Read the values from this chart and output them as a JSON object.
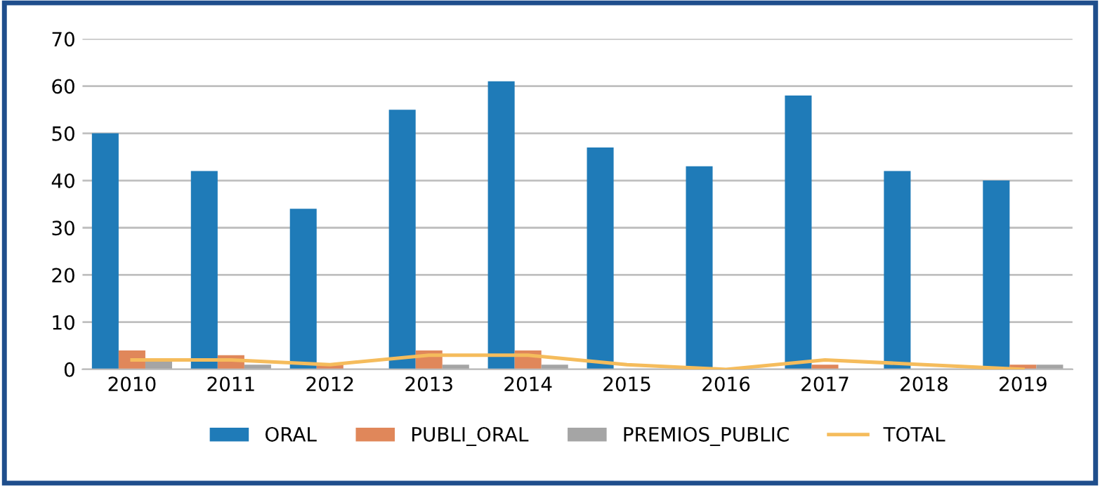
{
  "chart_data": {
    "type": "bar",
    "categories": [
      "2010",
      "2011",
      "2012",
      "2013",
      "2014",
      "2015",
      "2016",
      "2017",
      "2018",
      "2019"
    ],
    "series": [
      {
        "name": "ORAL",
        "color": "#1f7bb8",
        "values": [
          50,
          42,
          34,
          55,
          61,
          47,
          43,
          58,
          42,
          40
        ]
      },
      {
        "name": "PUBLI_ORAL",
        "color": "#e0875a",
        "values": [
          4,
          3,
          1,
          4,
          4,
          0,
          0,
          1,
          0,
          1
        ]
      },
      {
        "name": "PREMIOS_PUBLIC",
        "color": "#a5a5a5",
        "values": [
          2,
          1,
          0,
          1,
          1,
          0,
          0,
          0,
          0,
          1
        ]
      },
      {
        "name": "TOTAL",
        "type": "line",
        "color": "#f5bc5c",
        "values": [
          2,
          2,
          1,
          3,
          3,
          1,
          0,
          2,
          1,
          0
        ]
      }
    ],
    "ylim": [
      0,
      70
    ],
    "yticks": [
      0,
      10,
      20,
      30,
      40,
      50,
      60,
      70
    ],
    "grid": "y",
    "legend": "bottom"
  }
}
